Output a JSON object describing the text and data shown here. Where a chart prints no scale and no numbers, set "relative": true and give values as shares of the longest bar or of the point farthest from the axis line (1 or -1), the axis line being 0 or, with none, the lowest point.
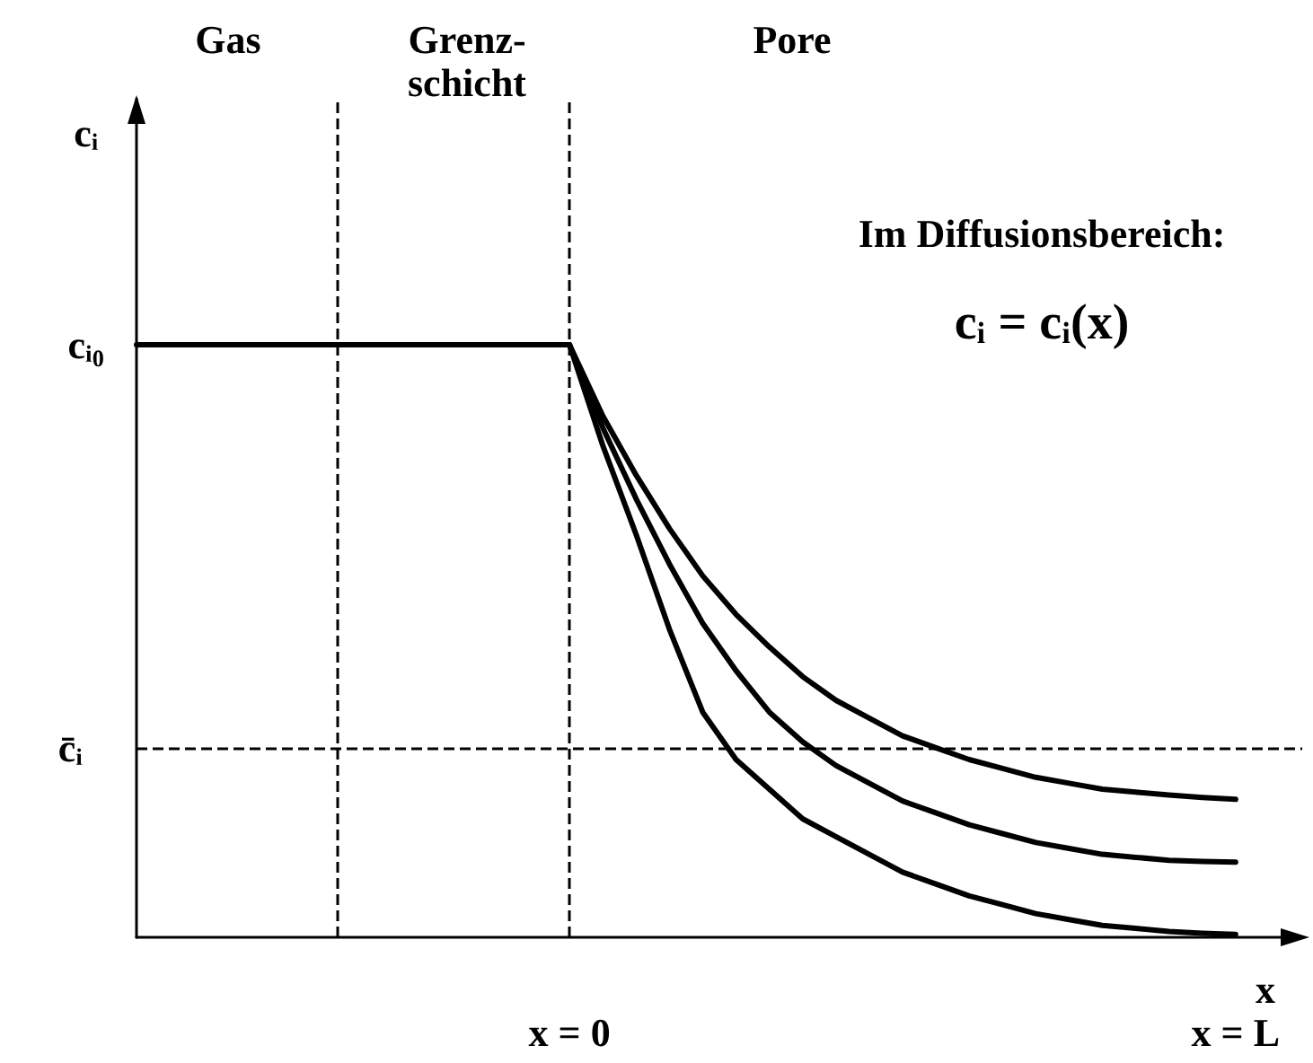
{
  "chart_data": {
    "type": "line",
    "relative": true,
    "xlabel": "x",
    "categories": [
      null,
      null,
      null,
      null,
      null,
      null,
      null,
      null,
      null,
      null,
      null,
      null,
      null,
      "x = 0",
      null,
      null,
      null,
      null,
      null,
      null,
      null,
      null,
      null,
      null,
      null,
      null,
      null,
      null,
      null,
      null,
      null,
      null,
      null,
      "x = L",
      null,
      null
    ],
    "series": [
      {
        "color": "#000000",
        "values": [
          1,
          1,
          1,
          1,
          1,
          1,
          1,
          1,
          1,
          1,
          1,
          1,
          1,
          1,
          null,
          null,
          null,
          null,
          null,
          null,
          null,
          null,
          null,
          null,
          null,
          null,
          null,
          null,
          null,
          null,
          null,
          null,
          null,
          null,
          null,
          null
        ]
      },
      {
        "color": "#000000",
        "values": [
          null,
          null,
          null,
          null,
          null,
          null,
          null,
          null,
          null,
          null,
          null,
          null,
          null,
          1,
          0.88,
          0.78,
          0.69,
          0.61,
          0.545,
          0.49,
          0.44,
          0.4,
          0.37,
          0.34,
          0.32,
          0.3,
          0.285,
          0.27,
          0.26,
          0.25,
          0.245,
          0.24,
          0.236,
          0.233,
          null,
          null
        ]
      },
      {
        "color": "#000000",
        "values": [
          null,
          null,
          null,
          null,
          null,
          null,
          null,
          null,
          null,
          null,
          null,
          null,
          null,
          1,
          0.86,
          0.74,
          0.63,
          0.53,
          0.45,
          0.38,
          0.33,
          0.29,
          0.26,
          0.23,
          0.21,
          0.19,
          0.175,
          0.16,
          0.15,
          0.14,
          0.135,
          0.13,
          0.128,
          0.127,
          null,
          null
        ]
      },
      {
        "color": "#000000",
        "values": [
          null,
          null,
          null,
          null,
          null,
          null,
          null,
          null,
          null,
          null,
          null,
          null,
          null,
          1,
          0.83,
          0.68,
          0.52,
          0.38,
          0.3,
          0.25,
          0.2,
          0.17,
          0.14,
          0.11,
          0.09,
          0.07,
          0.055,
          0.04,
          0.03,
          0.02,
          0.015,
          0.01,
          0.007,
          0.005,
          null,
          null
        ]
      }
    ],
    "ref_lines": [
      {
        "axis": "x",
        "value": "x = 0",
        "line_style": "dashed"
      },
      {
        "axis": "y",
        "value": 0.315,
        "label": "c̄ᵢ",
        "line_style": "dashed"
      }
    ],
    "annotations": [
      "cᵢ",
      "cᵢ₀",
      "Gas",
      "Grenz-\nschicht",
      "Pore",
      "Im Diffusionsbereich:",
      "cᵢ = cᵢ(x)"
    ],
    "marker": "none",
    "line_style": "solid",
    "grid": false
  }
}
